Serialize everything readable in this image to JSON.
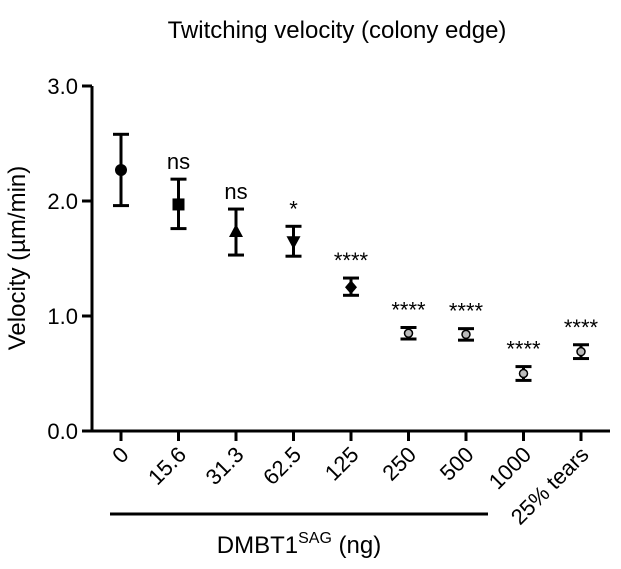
{
  "chart_data": {
    "type": "scatter",
    "title": "Twitching velocity (colony edge)",
    "ylabel": "Velocity (µm/min)",
    "xlabel": "DMBT1",
    "xlabel_superscript": "SAG",
    "xlabel_unit": " (ng)",
    "ylim": [
      0,
      3.0
    ],
    "yticks": [
      "0.0",
      "1.0",
      "2.0",
      "3.0"
    ],
    "grid": false,
    "categories": [
      "0",
      "15.6",
      "31.3",
      "62.5",
      "125",
      "250",
      "500",
      "1000",
      "25% tears"
    ],
    "values": [
      2.27,
      1.97,
      1.73,
      1.65,
      1.25,
      0.85,
      0.84,
      0.5,
      0.69
    ],
    "error_low": [
      1.96,
      1.76,
      1.53,
      1.52,
      1.18,
      0.8,
      0.79,
      0.44,
      0.63
    ],
    "error_high": [
      2.58,
      2.19,
      1.93,
      1.78,
      1.33,
      0.9,
      0.89,
      0.56,
      0.75
    ],
    "markers": [
      "circle",
      "square",
      "triangle-up",
      "triangle-down",
      "diamond",
      "open-circle",
      "open-circle",
      "open-circle",
      "open-circle"
    ],
    "significance": [
      "",
      "ns",
      "ns",
      "*",
      "****",
      "****",
      "****",
      "****",
      "****"
    ]
  }
}
